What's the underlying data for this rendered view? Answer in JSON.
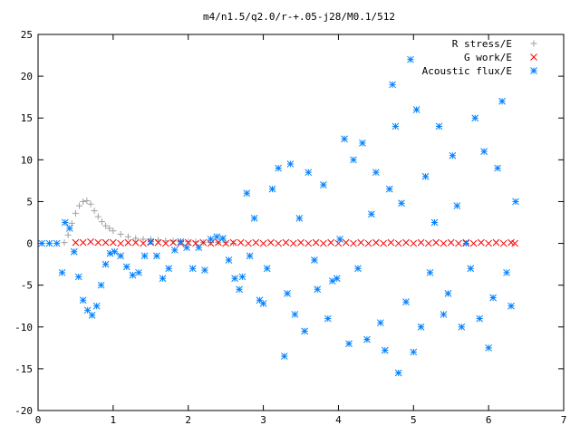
{
  "chart_data": {
    "type": "scatter",
    "title": "m4/n1.5/q2.0/r-+.05-j28/M0.1/512",
    "xlabel": "",
    "ylabel": "",
    "xlim": [
      0,
      7
    ],
    "ylim": [
      -20,
      25
    ],
    "x_ticks": [
      0,
      1,
      2,
      3,
      4,
      5,
      6,
      7
    ],
    "y_ticks": [
      -20,
      -15,
      -10,
      -5,
      0,
      5,
      10,
      15,
      20,
      25
    ],
    "grid": false,
    "legend_position": "top-right",
    "series": [
      {
        "name": "R stress/E",
        "color": "#a0a0a0",
        "marker": "plus",
        "x": [
          0.35,
          0.4,
          0.45,
          0.5,
          0.55,
          0.6,
          0.65,
          0.7,
          0.75,
          0.8,
          0.85,
          0.9,
          0.95,
          1.0,
          1.1,
          1.2,
          1.3,
          1.4,
          1.5,
          1.6,
          1.7,
          1.8,
          1.9,
          2.0,
          2.1,
          2.2,
          2.3,
          2.4,
          2.5,
          2.6
        ],
        "y": [
          0.1,
          1.0,
          2.4,
          3.6,
          4.5,
          5.0,
          5.1,
          4.7,
          3.9,
          3.2,
          2.6,
          2.1,
          1.8,
          1.5,
          1.1,
          0.8,
          0.6,
          0.5,
          0.5,
          0.4,
          0.3,
          0.3,
          0.2,
          0.2,
          0.2,
          0.1,
          0.1,
          0.1,
          0.1,
          0.0
        ]
      },
      {
        "name": "G work/E",
        "color": "#ff0000",
        "marker": "cross",
        "x": [
          0.5,
          0.6,
          0.7,
          0.8,
          0.9,
          1.0,
          1.1,
          1.2,
          1.3,
          1.4,
          1.5,
          1.6,
          1.7,
          1.8,
          1.9,
          2.0,
          2.1,
          2.2,
          2.3,
          2.4,
          2.5,
          2.6,
          2.7,
          2.8,
          2.9,
          3.0,
          3.1,
          3.2,
          3.3,
          3.4,
          3.5,
          3.6,
          3.7,
          3.8,
          3.9,
          4.0,
          4.1,
          4.2,
          4.3,
          4.4,
          4.5,
          4.6,
          4.7,
          4.8,
          4.9,
          5.0,
          5.1,
          5.2,
          5.3,
          5.4,
          5.5,
          5.6,
          5.7,
          5.8,
          5.9,
          6.0,
          6.1,
          6.2,
          6.3,
          6.35
        ],
        "y": [
          0.1,
          0.1,
          0.2,
          0.1,
          0.1,
          0.1,
          0.0,
          0.1,
          0.1,
          0.0,
          0.1,
          0.1,
          0.0,
          0.1,
          0.0,
          0.1,
          0.0,
          0.1,
          0.0,
          0.1,
          0.0,
          0.1,
          0.1,
          0.0,
          0.1,
          0.0,
          0.1,
          0.0,
          0.1,
          0.0,
          0.1,
          0.0,
          0.1,
          0.0,
          0.1,
          0.0,
          0.1,
          0.0,
          0.1,
          0.0,
          0.1,
          0.0,
          0.1,
          0.0,
          0.1,
          0.0,
          0.1,
          0.0,
          0.1,
          0.0,
          0.1,
          0.0,
          0.1,
          0.0,
          0.1,
          0.0,
          0.1,
          0.0,
          0.1,
          0.0
        ]
      },
      {
        "name": "Acoustic flux/E",
        "color": "#0080ff",
        "marker": "star",
        "x": [
          0.05,
          0.15,
          0.25,
          0.32,
          0.36,
          0.42,
          0.48,
          0.54,
          0.6,
          0.66,
          0.72,
          0.78,
          0.84,
          0.9,
          0.96,
          1.02,
          1.1,
          1.18,
          1.26,
          1.34,
          1.42,
          1.5,
          1.58,
          1.66,
          1.74,
          1.82,
          1.9,
          1.98,
          2.06,
          2.14,
          2.22,
          2.3,
          2.38,
          2.46,
          2.54,
          2.62,
          2.68,
          2.72,
          2.78,
          2.82,
          2.88,
          2.95,
          3.0,
          3.05,
          3.12,
          3.2,
          3.28,
          3.32,
          3.36,
          3.42,
          3.48,
          3.55,
          3.6,
          3.68,
          3.72,
          3.8,
          3.86,
          3.92,
          3.98,
          4.02,
          4.08,
          4.14,
          4.2,
          4.26,
          4.32,
          4.38,
          4.44,
          4.5,
          4.56,
          4.62,
          4.68,
          4.72,
          4.76,
          4.8,
          4.84,
          4.9,
          4.96,
          5.0,
          5.04,
          5.1,
          5.16,
          5.22,
          5.28,
          5.34,
          5.4,
          5.46,
          5.52,
          5.58,
          5.64,
          5.7,
          5.76,
          5.82,
          5.88,
          5.94,
          6.0,
          6.06,
          6.12,
          6.18,
          6.24,
          6.3,
          6.36
        ],
        "y": [
          0,
          0,
          0,
          -3.5,
          2.5,
          1.8,
          -1.0,
          -4.0,
          -6.8,
          -8.0,
          -8.6,
          -7.5,
          -5.0,
          -2.5,
          -1.2,
          -1.0,
          -1.5,
          -2.8,
          -3.8,
          -3.5,
          -1.5,
          0.2,
          -1.5,
          -4.2,
          -3.0,
          -0.8,
          0.2,
          -0.5,
          -3.0,
          -0.5,
          -3.2,
          0.5,
          0.8,
          0.6,
          -2.0,
          -4.2,
          -5.5,
          -4.0,
          6.0,
          -1.5,
          3.0,
          -6.8,
          -7.2,
          -3.0,
          6.5,
          9.0,
          -13.5,
          -6.0,
          9.5,
          -8.5,
          3.0,
          -10.5,
          8.5,
          -2.0,
          -5.5,
          7.0,
          -9.0,
          -4.5,
          -4.2,
          0.5,
          12.5,
          -12.0,
          10.0,
          -3.0,
          12.0,
          -11.5,
          3.5,
          8.5,
          -9.5,
          -12.8,
          6.5,
          19.0,
          14.0,
          -15.5,
          4.8,
          -7.0,
          22.0,
          -13.0,
          16.0,
          -10.0,
          8.0,
          -3.5,
          2.5,
          14.0,
          -8.5,
          -6.0,
          10.5,
          4.5,
          -10.0,
          0.0,
          -3.0,
          15.0,
          -9.0,
          11.0,
          -12.5,
          -6.5,
          9.0,
          17.0,
          -3.5,
          -7.5,
          5.0
        ]
      }
    ]
  }
}
